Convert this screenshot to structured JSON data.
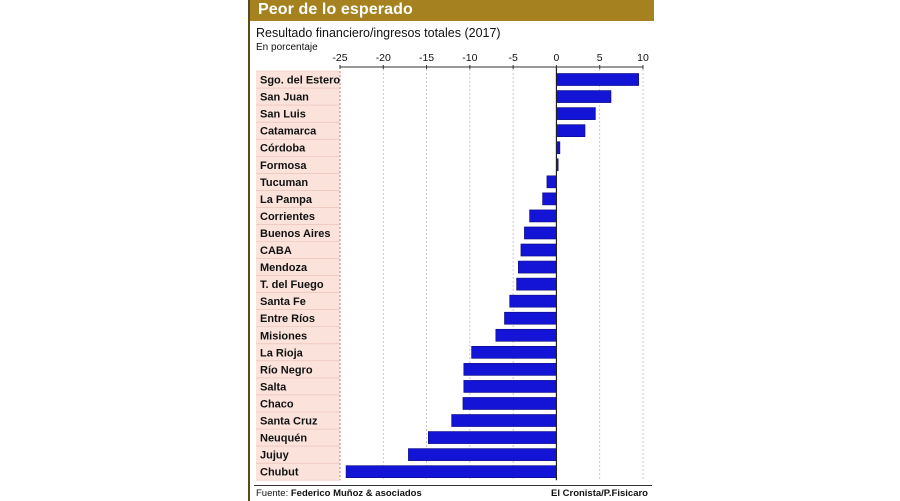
{
  "header": {
    "title": "Peor de lo esperado",
    "subtitle": "Resultado financiero/ingresos totales (2017)",
    "unit_note": "En porcentaje"
  },
  "footer": {
    "source_label": "Fuente:",
    "source_value": "Federico Muñoz & asociados",
    "credit": "El Cronista/P.Fisicaro"
  },
  "colors": {
    "title_bar": "#a5821f",
    "bar_fill": "#1414d6",
    "bar_stroke": "#0a0a7a",
    "label_band": "#fbe3dc",
    "negative_zone": "#fdecea"
  },
  "chart_data": {
    "type": "bar",
    "orientation": "horizontal",
    "categories": [
      "Sgo. del Estero",
      "San Juan",
      "San Luis",
      "Catamarca",
      "Córdoba",
      "Formosa",
      "Tucuman",
      "La Pampa",
      "Corrientes",
      "Buenos Aires",
      "CABA",
      "Mendoza",
      "T. del Fuego",
      "Santa Fe",
      "Entre Ríos",
      "Misiones",
      "La Rioja",
      "Río Negro",
      "Salta",
      "Chaco",
      "Santa Cruz",
      "Neuquén",
      "Jujuy",
      "Chubut"
    ],
    "values": [
      9.5,
      6.3,
      4.5,
      3.3,
      0.4,
      0.2,
      -1.1,
      -1.6,
      -3.1,
      -3.7,
      -4.1,
      -4.4,
      -4.6,
      -5.4,
      -6.0,
      -7.0,
      -9.8,
      -10.7,
      -10.7,
      -10.8,
      -12.1,
      -14.8,
      -17.1,
      -24.3
    ],
    "xticks": [
      -25,
      -20,
      -15,
      -10,
      -5,
      0,
      5,
      10
    ],
    "xlim": [
      -25,
      10
    ],
    "grid": "vertical dashed",
    "legend": "none"
  }
}
